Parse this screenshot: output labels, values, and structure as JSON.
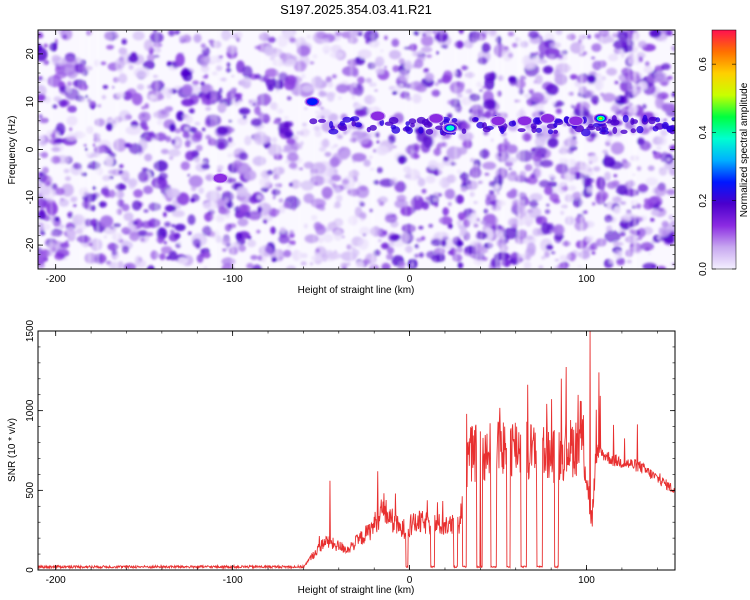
{
  "title": "S197.2025.354.03.41.R21",
  "chart_data": [
    {
      "type": "heatmap",
      "xlabel": "Height of straight line (km)",
      "ylabel": "Frequency (Hz)",
      "xlim": [
        -210,
        150
      ],
      "ylim": [
        -25,
        25
      ],
      "xticks": [
        -200,
        -100,
        0,
        100
      ],
      "yticks": [
        -20,
        -10,
        0,
        10,
        20
      ],
      "colorbar": {
        "label": "Normalized spectral amplitude",
        "range": [
          0.0,
          0.7
        ],
        "ticks": [
          0.0,
          0.2,
          0.4,
          0.6
        ],
        "colors": [
          "#f4f0ff",
          "#c8a8f0",
          "#8b2be2",
          "#4b00cc",
          "#0018ff",
          "#00b0ff",
          "#00ffd0",
          "#00ff40",
          "#c8ff00",
          "#ffd000",
          "#ff7000",
          "#ff1050"
        ]
      },
      "hotspots": [
        {
          "x": 23,
          "y": 4.5,
          "value": 0.4
        },
        {
          "x": 108,
          "y": 6.5,
          "value": 0.55
        },
        {
          "x": -55,
          "y": 10,
          "value": 0.25
        },
        {
          "x": -107,
          "y": -6,
          "value": 0.2
        },
        {
          "x": 50,
          "y": 6,
          "value": 0.2
        },
        {
          "x": 78,
          "y": 6.5,
          "value": 0.22
        },
        {
          "x": 15,
          "y": 6.5,
          "value": 0.15
        },
        {
          "x": -18,
          "y": 7,
          "value": 0.15
        },
        {
          "x": 94,
          "y": 6,
          "value": 0.15
        },
        {
          "x": 65,
          "y": 6,
          "value": 0.15
        }
      ]
    },
    {
      "type": "line",
      "xlabel": "Height of straight line (km)",
      "ylabel": "SNR (10 * v/v)",
      "xlim": [
        -210,
        150
      ],
      "ylim": [
        0,
        1500
      ],
      "xticks": [
        -200,
        -100,
        0,
        100
      ],
      "yticks": [
        0,
        500,
        1000,
        1500
      ],
      "color": "#e83030",
      "series_profile": [
        {
          "x": -210,
          "y": 20
        },
        {
          "x": -60,
          "y": 20
        },
        {
          "x": -48,
          "y": 180
        },
        {
          "x": -35,
          "y": 130
        },
        {
          "x": -22,
          "y": 250
        },
        {
          "x": -15,
          "y": 380
        },
        {
          "x": -5,
          "y": 250
        },
        {
          "x": 5,
          "y": 300
        },
        {
          "x": 20,
          "y": 280
        },
        {
          "x": 28,
          "y": 280
        },
        {
          "x": 33,
          "y": 720
        },
        {
          "x": 60,
          "y": 780
        },
        {
          "x": 80,
          "y": 720
        },
        {
          "x": 88,
          "y": 750
        },
        {
          "x": 98,
          "y": 800
        },
        {
          "x": 103,
          "y": 300
        },
        {
          "x": 106,
          "y": 750
        },
        {
          "x": 115,
          "y": 690
        },
        {
          "x": 130,
          "y": 650
        },
        {
          "x": 150,
          "y": 500
        }
      ],
      "spikes": [
        {
          "x": -45,
          "y": 560
        },
        {
          "x": -18,
          "y": 620
        },
        {
          "x": -8,
          "y": 480
        },
        {
          "x": 40,
          "y": 870
        },
        {
          "x": 57,
          "y": 870
        },
        {
          "x": 70,
          "y": 840
        },
        {
          "x": 90,
          "y": 800
        },
        {
          "x": 97,
          "y": 1060
        },
        {
          "x": 102,
          "y": 1500
        },
        {
          "x": 107,
          "y": 1240
        }
      ],
      "dropouts": [
        {
          "from": 30,
          "to": 32,
          "y": 20
        },
        {
          "from": 38,
          "to": 41,
          "y": 20
        },
        {
          "from": 46,
          "to": 49,
          "y": 20
        },
        {
          "from": 55,
          "to": 57,
          "y": 20
        },
        {
          "from": 63,
          "to": 66,
          "y": 20
        },
        {
          "from": 72,
          "to": 75,
          "y": 20
        },
        {
          "from": 82,
          "to": 84,
          "y": 20
        },
        {
          "from": 25,
          "to": 27,
          "y": 20
        },
        {
          "from": 12,
          "to": 14,
          "y": 20
        },
        {
          "from": -2,
          "to": -1,
          "y": 20
        }
      ]
    }
  ]
}
